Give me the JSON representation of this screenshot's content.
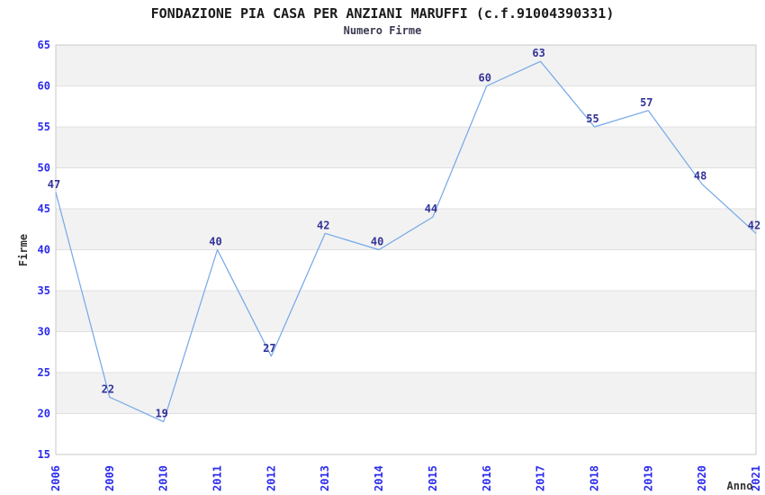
{
  "chart_data": {
    "type": "line",
    "title": "FONDAZIONE PIA CASA PER ANZIANI MARUFFI (c.f.91004390331)",
    "subtitle": "Numero Firme",
    "xlabel": "Anno",
    "ylabel": "Firme",
    "categories": [
      "2006",
      "2009",
      "2010",
      "2011",
      "2012",
      "2013",
      "2014",
      "2015",
      "2016",
      "2017",
      "2018",
      "2019",
      "2020",
      "2021"
    ],
    "values": [
      47,
      22,
      19,
      40,
      27,
      42,
      40,
      44,
      60,
      63,
      55,
      57,
      48,
      42
    ],
    "ylim": [
      15,
      65
    ],
    "ytick_step": 5,
    "yticks": [
      15,
      20,
      25,
      30,
      35,
      40,
      45,
      50,
      55,
      60,
      65
    ],
    "xticklabel_rotation": 90,
    "grid": "horizontal zebra bands with gridlines every 5",
    "legend": "none",
    "point_labels_visible": true,
    "colors": {
      "line": "#74a7e8",
      "axis_tick_label": "#2b2bee",
      "point_label": "#333399",
      "band_fill": "#f2f2f2",
      "gridline": "#e0e0e0",
      "plot_border": "#c9c9c9",
      "title": "#1a1a1a",
      "subtitle": "#3a3a52",
      "axis_title": "#333333",
      "background": "#ffffff"
    }
  }
}
